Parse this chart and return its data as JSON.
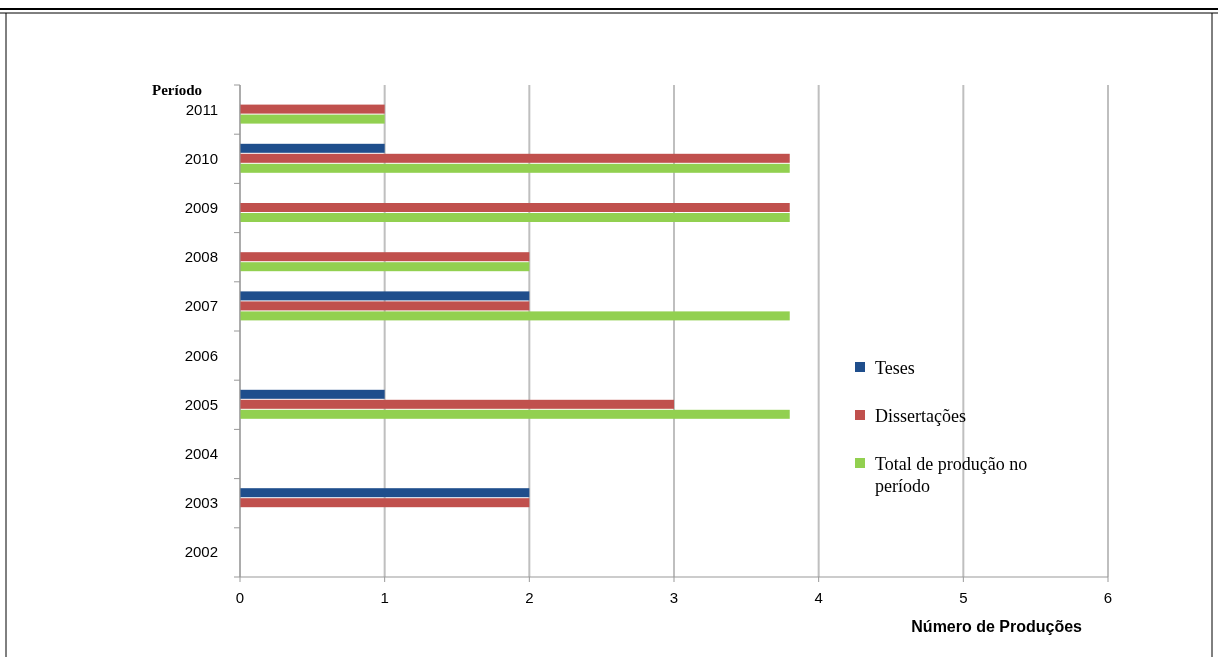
{
  "chart_data": {
    "type": "bar",
    "orientation": "horizontal",
    "xlabel": "Número de Produções",
    "ylabel": "Período",
    "categories": [
      "2011",
      "2010",
      "2009",
      "2008",
      "2007",
      "2006",
      "2005",
      "2004",
      "2003",
      "2002"
    ],
    "series": [
      {
        "name": "Teses",
        "color": "#1f4e8c",
        "values": [
          null,
          1,
          null,
          null,
          2,
          null,
          1,
          null,
          2,
          null
        ]
      },
      {
        "name": "Dissertações",
        "color": "#c0504d",
        "values": [
          1,
          3.8,
          3.8,
          2,
          2,
          null,
          3,
          null,
          2,
          null
        ]
      },
      {
        "name": "Total de produção no período",
        "color": "#92d050",
        "values": [
          1,
          3.8,
          3.8,
          2,
          3.8,
          null,
          3.8,
          null,
          null,
          null
        ]
      }
    ],
    "xlim": [
      0,
      6
    ],
    "xticks": [
      0,
      1,
      2,
      3,
      4,
      5,
      6
    ],
    "grid": "x",
    "legend": "right"
  }
}
